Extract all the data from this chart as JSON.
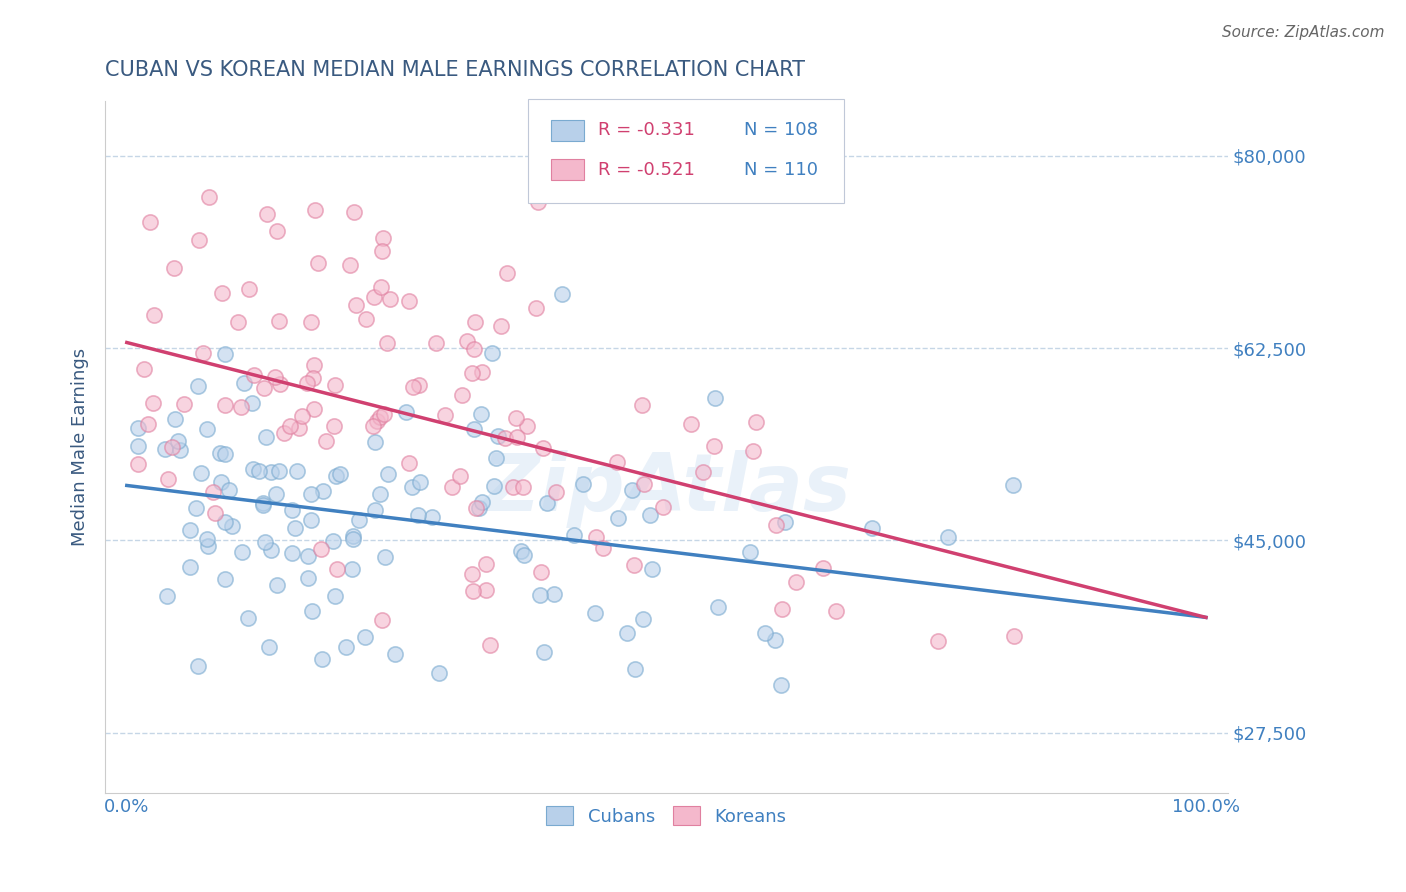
{
  "title": "CUBAN VS KOREAN MEDIAN MALE EARNINGS CORRELATION CHART",
  "source": "Source: ZipAtlas.com",
  "ylabel": "Median Male Earnings",
  "xlim": [
    -0.02,
    1.02
  ],
  "ylim": [
    22000,
    85000
  ],
  "yticks": [
    27500,
    45000,
    62500,
    80000
  ],
  "ytick_labels": [
    "$27,500",
    "$45,000",
    "$62,500",
    "$80,000"
  ],
  "xtick_positions": [
    0,
    0.1,
    0.2,
    0.3,
    0.4,
    0.5,
    0.6,
    0.7,
    0.8,
    0.9,
    1.0
  ],
  "blue_fill": "#b8d0ea",
  "blue_edge": "#7aaad0",
  "pink_fill": "#f4b8cc",
  "pink_edge": "#e080a0",
  "blue_line_color": "#4080c0",
  "pink_line_color": "#d04070",
  "title_color": "#3a5a80",
  "source_color": "#666666",
  "watermark": "ZipAtlas",
  "legend_r_color": "#d04070",
  "legend_n_color": "#4080c0",
  "legend_text_color": "#4080c0",
  "cubans_label": "Cubans",
  "koreans_label": "Koreans",
  "blue_intercept": 50000,
  "blue_slope": -12000,
  "pink_intercept": 63000,
  "pink_slope": -25000,
  "n_blue": 108,
  "n_pink": 110,
  "scatter_alpha": 0.6,
  "scatter_size": 120,
  "background_color": "#ffffff",
  "grid_color": "#b8cce0",
  "grid_alpha": 0.8,
  "grid_style": "--",
  "watermark_color": "#5090d0",
  "watermark_alpha": 0.12
}
